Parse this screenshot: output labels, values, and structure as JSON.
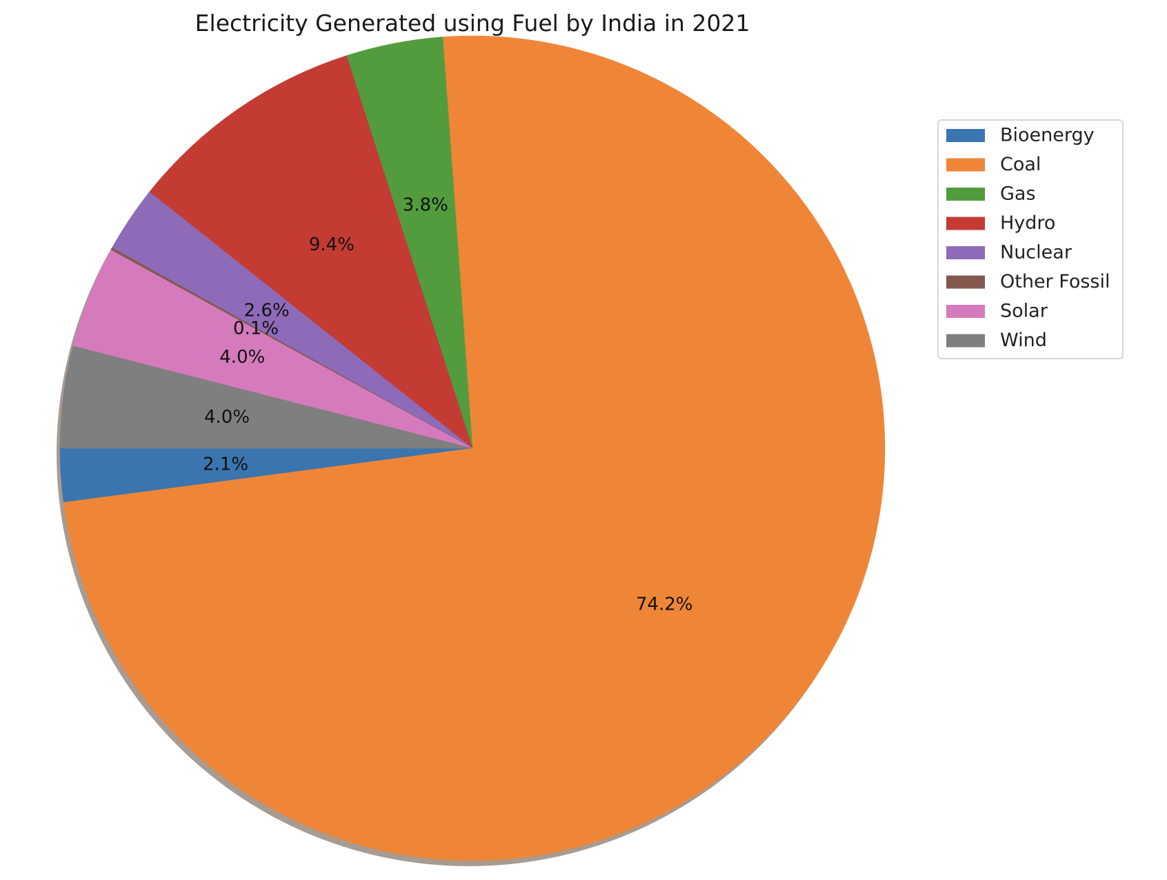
{
  "chart_data": {
    "type": "pie",
    "title": "Electricity Generated using Fuel by India in 2021",
    "start_angle_deg": 180,
    "direction": "counterclockwise",
    "shadow": true,
    "legend_position": "right",
    "slices": [
      {
        "label": "Bioenergy",
        "value": 2.1,
        "pct_label": "2.1%",
        "color": "#3a75af"
      },
      {
        "label": "Coal",
        "value": 74.2,
        "pct_label": "74.2%",
        "color": "#ef8637"
      },
      {
        "label": "Gas",
        "value": 3.8,
        "pct_label": "3.8%",
        "color": "#529c3e"
      },
      {
        "label": "Hydro",
        "value": 9.4,
        "pct_label": "9.4%",
        "color": "#c43b33"
      },
      {
        "label": "Nuclear",
        "value": 2.6,
        "pct_label": "2.6%",
        "color": "#8d6bb8"
      },
      {
        "label": "Other Fossil",
        "value": 0.1,
        "pct_label": "0.1%",
        "color": "#84584e"
      },
      {
        "label": "Solar",
        "value": 4.0,
        "pct_label": "4.0%",
        "color": "#d57bbd"
      },
      {
        "label": "Wind",
        "value": 4.0,
        "pct_label": "4.0%",
        "color": "#7f7f7f"
      }
    ]
  }
}
